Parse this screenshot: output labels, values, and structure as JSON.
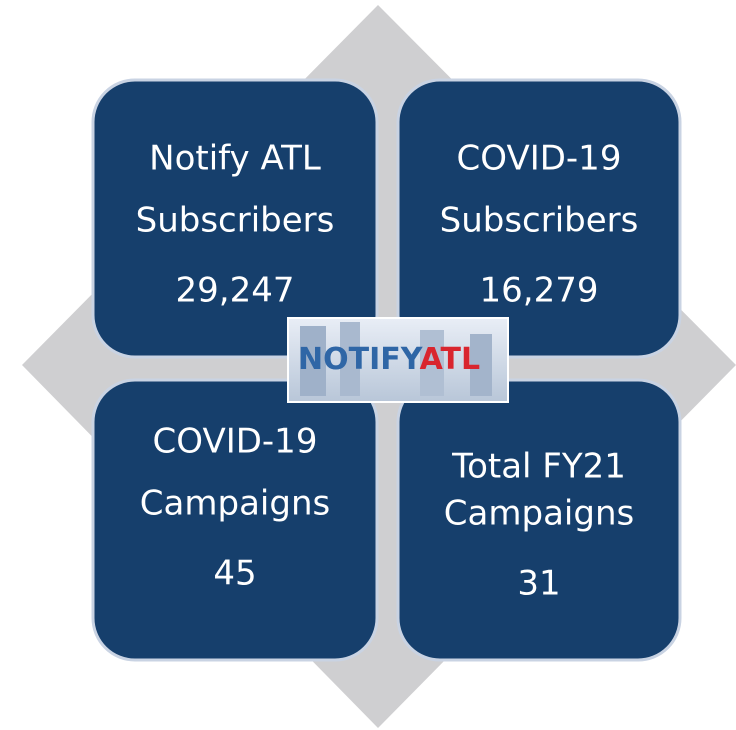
{
  "cards": [
    {
      "lines": [
        "Notify ATL",
        "Subscribers"
      ],
      "value": "29,247"
    },
    {
      "lines": [
        "COVID-19",
        "Subscribers"
      ],
      "value": "16,279"
    },
    {
      "lines": [
        "COVID-19",
        "Campaigns"
      ],
      "value": "45"
    },
    {
      "lines": [
        "Total FY21",
        "Campaigns"
      ],
      "value": "31"
    }
  ],
  "logo": {
    "parts": [
      "NOTIFY",
      "ATL"
    ]
  }
}
